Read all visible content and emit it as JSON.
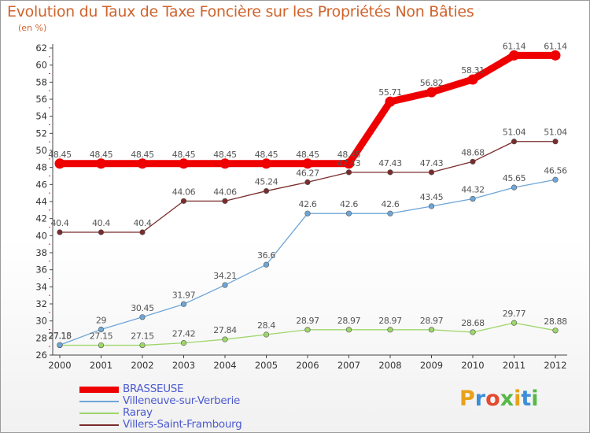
{
  "title": "Evolution du Taux de Taxe Foncière sur les Propriétés Non Bâties",
  "unit_label": "(en %)",
  "logo": {
    "text": "Proxiti",
    "colors": [
      "#e8a21a",
      "#3a8fd8",
      "#e34a2f",
      "#57b847",
      "#e8a21a",
      "#3a8fd8",
      "#57b847"
    ]
  },
  "chart_data": {
    "type": "line",
    "title": "Evolution du Taux de Taxe Foncière sur les Propriétés Non Bâties",
    "ylabel": "(en %)",
    "xlabel": "",
    "x": [
      "2000",
      "2001",
      "2002",
      "2003",
      "2004",
      "2005",
      "2006",
      "2007",
      "2008",
      "2009",
      "2010",
      "2011",
      "2012"
    ],
    "ylim": [
      26,
      62
    ],
    "yticks": [
      "26",
      "28",
      "30",
      "32",
      "34",
      "36",
      "38",
      "40",
      "42",
      "44",
      "46",
      "48",
      "50",
      "52",
      "54",
      "56",
      "58",
      "60",
      "62"
    ],
    "grid": false,
    "legend_position": "bottom-left",
    "series": [
      {
        "name": "BRASSEUSE",
        "color": "#ee0000",
        "values": [
          48.45,
          48.45,
          48.45,
          48.45,
          48.45,
          48.45,
          48.45,
          48.45,
          55.71,
          56.82,
          58.31,
          61.14,
          61.14
        ],
        "labels": [
          "48.45",
          "48.45",
          "48.45",
          "48.45",
          "48.45",
          "48.45",
          "48.45",
          "48.45",
          "55.71",
          "56.82",
          "58.31",
          "61.14",
          "61.14"
        ]
      },
      {
        "name": "Villeneuve-sur-Verberie",
        "color": "#6fa6d8",
        "values": [
          27.18,
          29,
          30.45,
          31.97,
          34.21,
          36.6,
          42.6,
          42.6,
          42.6,
          43.45,
          44.32,
          45.65,
          46.56
        ],
        "labels": [
          "27.18",
          "29",
          "30.45",
          "31.97",
          "34.21",
          "36.6",
          "42.6",
          "42.6",
          "42.6",
          "43.45",
          "44.32",
          "45.65",
          "46.56"
        ]
      },
      {
        "name": "Raray",
        "color": "#9ed66a",
        "values": [
          27.15,
          27.15,
          27.15,
          27.42,
          27.84,
          28.4,
          28.97,
          28.97,
          28.97,
          28.97,
          28.68,
          29.77,
          28.88
        ],
        "labels": [
          "27.15",
          "27.15",
          "27.15",
          "27.42",
          "27.84",
          "28.4",
          "28.97",
          "28.97",
          "28.97",
          "28.97",
          "28.68",
          "29.77",
          "28.88"
        ]
      },
      {
        "name": "Villers-Saint-Frambourg",
        "color": "#7a2c2c",
        "values": [
          40.4,
          40.4,
          40.4,
          44.06,
          44.06,
          45.24,
          46.27,
          47.43,
          47.43,
          47.43,
          48.68,
          51.04,
          51.04
        ],
        "labels": [
          "40.4",
          "40.4",
          "40.4",
          "44.06",
          "44.06",
          "45.24",
          "46.27",
          "47.43",
          "47.43",
          "47.43",
          "48.68",
          "51.04",
          "51.04"
        ]
      }
    ]
  }
}
